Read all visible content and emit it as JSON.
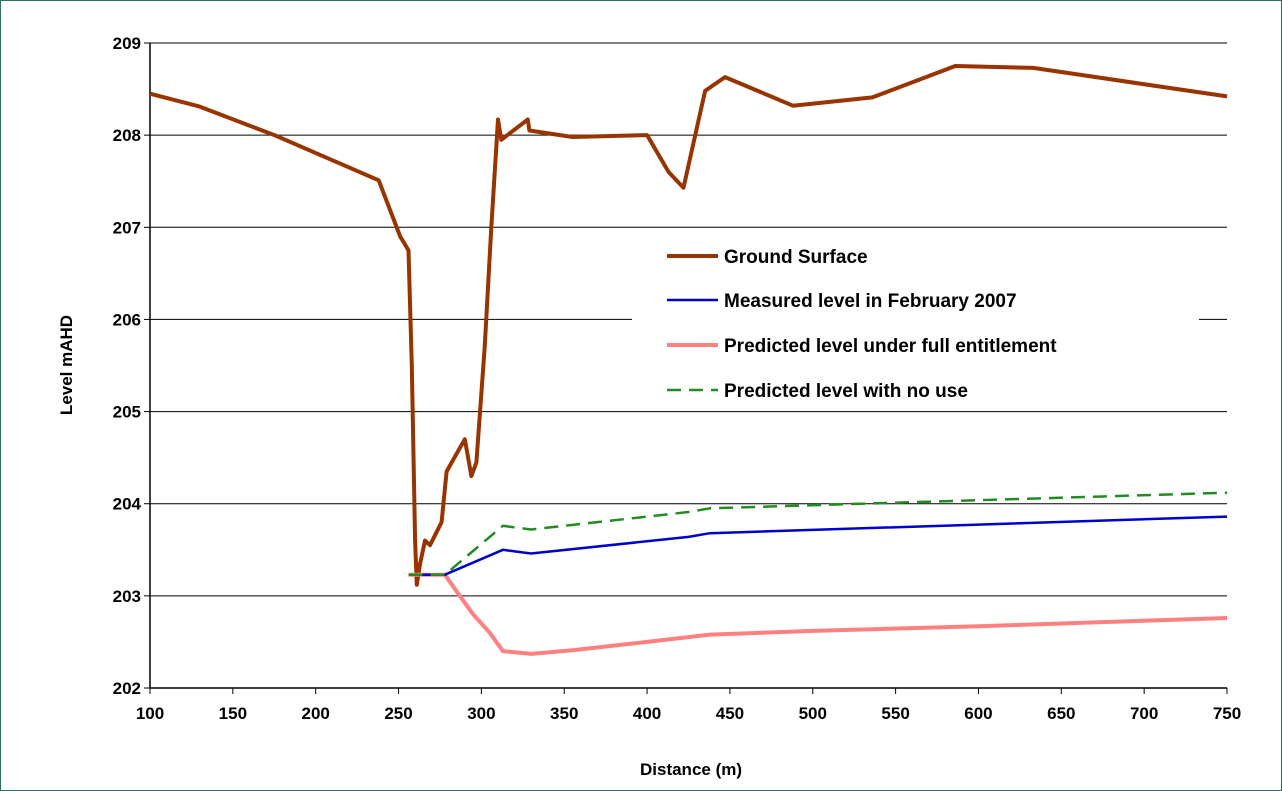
{
  "chart_data": {
    "type": "line",
    "title": "",
    "xlabel": "Distance (m)",
    "ylabel": "Level mAHD",
    "xlim": [
      100,
      750
    ],
    "ylim": [
      202,
      209
    ],
    "x_ticks": [
      100,
      150,
      200,
      250,
      300,
      350,
      400,
      450,
      500,
      550,
      600,
      650,
      700,
      750
    ],
    "y_ticks": [
      202,
      203,
      204,
      205,
      206,
      207,
      208,
      209
    ],
    "grid": "horizontal",
    "legend_position": "center-right",
    "series": [
      {
        "name": "Ground Surface",
        "color": "#993300",
        "style": "solid-thick",
        "points": [
          [
            100,
            208.45
          ],
          [
            130,
            208.31
          ],
          [
            175,
            208.0
          ],
          [
            238,
            207.51
          ],
          [
            251,
            206.9
          ],
          [
            256,
            206.75
          ],
          [
            258,
            205.5
          ],
          [
            260,
            203.6
          ],
          [
            261,
            203.12
          ],
          [
            263,
            203.35
          ],
          [
            266,
            203.6
          ],
          [
            269,
            203.55
          ],
          [
            276,
            203.8
          ],
          [
            279,
            204.35
          ],
          [
            290,
            204.7
          ],
          [
            294,
            204.3
          ],
          [
            297,
            204.45
          ],
          [
            302,
            205.7
          ],
          [
            306,
            207.0
          ],
          [
            310,
            208.17
          ],
          [
            312,
            207.95
          ],
          [
            328,
            208.17
          ],
          [
            329,
            208.05
          ],
          [
            355,
            207.98
          ],
          [
            400,
            208.0
          ],
          [
            413,
            207.6
          ],
          [
            422,
            207.43
          ],
          [
            435,
            208.48
          ],
          [
            447,
            208.63
          ],
          [
            488,
            208.32
          ],
          [
            536,
            208.41
          ],
          [
            586,
            208.75
          ],
          [
            633,
            208.73
          ],
          [
            750,
            208.42
          ]
        ]
      },
      {
        "name": "Measured level in February 2007",
        "color": "#0000cc",
        "style": "solid-thin",
        "points": [
          [
            256,
            203.23
          ],
          [
            278,
            203.23
          ],
          [
            313,
            203.5
          ],
          [
            330,
            203.46
          ],
          [
            425,
            203.64
          ],
          [
            438,
            203.68
          ],
          [
            750,
            203.86
          ]
        ]
      },
      {
        "name": "Predicted level under full entitlement",
        "color": "#ff8080",
        "style": "solid-thick",
        "points": [
          [
            256,
            203.23
          ],
          [
            278,
            203.23
          ],
          [
            285,
            203.05
          ],
          [
            295,
            202.8
          ],
          [
            305,
            202.6
          ],
          [
            313,
            202.4
          ],
          [
            330,
            202.37
          ],
          [
            355,
            202.41
          ],
          [
            400,
            202.5
          ],
          [
            438,
            202.58
          ],
          [
            500,
            202.62
          ],
          [
            600,
            202.67
          ],
          [
            750,
            202.76
          ]
        ]
      },
      {
        "name": "Predicted level with no use",
        "color": "#228b22",
        "style": "dashed",
        "points": [
          [
            256,
            203.23
          ],
          [
            278,
            203.23
          ],
          [
            313,
            203.76
          ],
          [
            330,
            203.72
          ],
          [
            425,
            203.91
          ],
          [
            438,
            203.95
          ],
          [
            750,
            204.12
          ]
        ]
      }
    ]
  }
}
